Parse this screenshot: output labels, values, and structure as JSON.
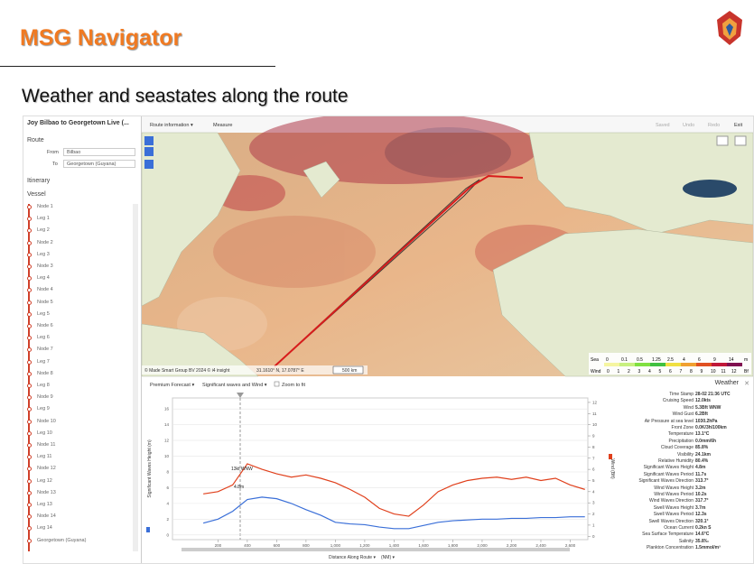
{
  "header": {
    "title": "MSG Navigator",
    "subtitle": "Weather and seastates along the route"
  },
  "sidebar": {
    "route_title": "Joy Bilbao to Georgetown Live (...",
    "route": "Route",
    "from_label": "From",
    "from_value": "Bilbao",
    "to_label": "To",
    "to_value": "Georgetown (Guyana)",
    "itinerary": "Itinerary",
    "vessel": "Vessel",
    "items": [
      "Node 1",
      "Leg 1",
      "Leg 2",
      "Node 2",
      "Leg 3",
      "Node 3",
      "Leg 4",
      "Node 4",
      "Node 5",
      "Leg 5",
      "Node 6",
      "Leg 6",
      "Node 7",
      "Leg 7",
      "Node 8",
      "Leg 8",
      "Node 9",
      "Leg 9",
      "Node 10",
      "Leg 10",
      "Node 11",
      "Leg 11",
      "Node 12",
      "Leg 12",
      "Node 13",
      "Leg 13",
      "Node 14",
      "Leg 14",
      "Georgetown (Guyana)"
    ]
  },
  "toolbar": {
    "route_info": "Route information ▾",
    "measure": "Measure",
    "saved": "Saved",
    "undo": "Undo",
    "redo": "Redo",
    "exit": "Exit"
  },
  "map": {
    "sea_label": "Sea",
    "sea_ticks": [
      0,
      0.1,
      0.5,
      1.25,
      2.5,
      4,
      6,
      9,
      14
    ],
    "sea_unit": "m",
    "wind_label": "Wind",
    "wind_ticks": [
      0,
      1,
      2,
      3,
      4,
      5,
      6,
      7,
      8,
      9,
      10,
      11,
      12
    ],
    "wind_unit": "Bf",
    "copyright": "© Made Smart Group BV 2024 © i4 insight",
    "coordinates": "31.1610° N, 17.0787° E",
    "scale": "500 km"
  },
  "chart_toolbar": {
    "forecast": "Premium Forecast ▾",
    "layer": "Significant waves and Wind ▾",
    "zoom": "Zoom to fit"
  },
  "chart": {
    "x_label": "Distance Along Route ▾",
    "x_unit": "(NM) ▾",
    "y_label": "Significant Waves Height (m)",
    "y2_label": "Wind (Bft)",
    "x": [
      100,
      200,
      300,
      400,
      500,
      600,
      700,
      800,
      900,
      1000,
      1100,
      1200,
      1300,
      1400,
      1500,
      1600,
      1700,
      1800,
      1900,
      2000,
      2100,
      2200,
      2300,
      2400,
      2500,
      2600,
      2700
    ],
    "xlim": [
      -110,
      2720
    ],
    "xticks": [
      200,
      400,
      600,
      800,
      {
        "value": 1000,
        "label": "1,000"
      },
      {
        "value": 1200,
        "label": "1,200"
      },
      {
        "value": 1400,
        "label": "1,400"
      },
      {
        "value": 1600,
        "label": "1,600"
      },
      {
        "value": 1800,
        "label": "1,800"
      },
      {
        "value": 2000,
        "label": "2,000"
      },
      {
        "value": 2200,
        "label": "2,200"
      },
      {
        "value": 2400,
        "label": "2,400"
      },
      {
        "value": 2600,
        "label": "2,600"
      }
    ],
    "ylim": [
      -0.6,
      17.4
    ],
    "yticks": [
      0,
      2,
      4,
      6,
      8,
      10,
      12,
      14,
      16
    ],
    "y2lim": [
      -0.3,
      12.4
    ],
    "y2ticks": [
      0,
      1,
      2,
      3,
      4,
      5,
      6,
      7,
      8,
      9,
      10,
      11,
      12
    ],
    "series": [
      {
        "color": "#3a6fd8",
        "values": [
          1.5,
          2.0,
          3.0,
          4.5,
          4.8,
          4.6,
          4.0,
          3.2,
          2.5,
          1.6,
          1.4,
          1.3,
          1.0,
          0.8,
          0.8,
          1.2,
          1.6,
          1.8,
          1.9,
          2.0,
          2.0,
          2.1,
          2.1,
          2.2,
          2.2,
          2.3,
          2.3
        ]
      },
      {
        "color": "#e0401c",
        "axis": "y2",
        "values": [
          3.8,
          4.0,
          4.6,
          6.5,
          6.0,
          5.6,
          5.3,
          5.5,
          5.2,
          4.8,
          4.2,
          3.5,
          2.5,
          2.0,
          1.8,
          2.8,
          4.0,
          4.6,
          5.0,
          5.2,
          5.3,
          5.1,
          5.3,
          5.0,
          5.2,
          4.6,
          4.2
        ]
      }
    ],
    "annotations": [
      "13kt WNW",
      "4.8m"
    ]
  },
  "weather": {
    "title": "Weather",
    "rows": [
      [
        "Time Stamp",
        "28-02 21:36 UTC"
      ],
      [
        "Cruising Speed",
        "12.0kts"
      ],
      [
        "Wind",
        "5.3Bft WNW"
      ],
      [
        "Wind Gust",
        "6.2Bft"
      ],
      [
        "Air Pressure at sea level",
        "1030.2hPa"
      ],
      [
        "Front Zone",
        "0.0K/3h/100km"
      ],
      [
        "Temperature",
        "13.1°C"
      ],
      [
        "Precipitation",
        "0.0mm/6h"
      ],
      [
        "Cloud Coverage",
        "85.8%"
      ],
      [
        "Visibility",
        "24.1km"
      ],
      [
        "Relative Humidity",
        "80.4%"
      ],
      [
        "Significant Waves Height",
        "4.8m"
      ],
      [
        "Significant Waves Period",
        "11.7s"
      ],
      [
        "Significant Waves Direction",
        "313.7°"
      ],
      [
        "Wind Waves Height",
        "3.2m"
      ],
      [
        "Wind Waves Period",
        "10.2s"
      ],
      [
        "Wind Waves Direction",
        "317.7°"
      ],
      [
        "Swell Waves Height",
        "3.7m"
      ],
      [
        "Swell Waves Period",
        "12.3s"
      ],
      [
        "Swell Waves Direction",
        "320.1°"
      ],
      [
        "Ocean Current",
        "0.2kn S"
      ],
      [
        "Sea Surface Temperature",
        "14.6°C"
      ],
      [
        "Salinity",
        "35.8‰"
      ],
      [
        "Plankton Concentration",
        "1.5mmol/m³"
      ]
    ]
  }
}
